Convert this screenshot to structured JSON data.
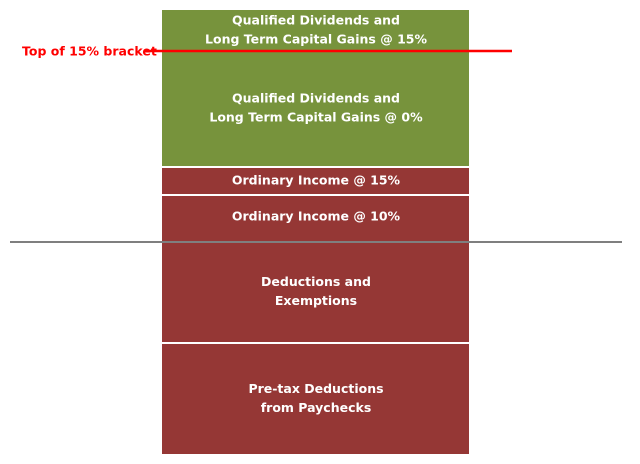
{
  "blocks": [
    {
      "lines": [
        "Qualified Dividends and",
        "Long Term Capital Gains @ 15%"
      ]
    },
    {
      "lines": [
        "Qualified Dividends and",
        "Long Term Capital Gains @ 0%"
      ]
    },
    {
      "lines": [
        "Ordinary Income @ 15%"
      ]
    },
    {
      "lines": [
        "Ordinary Income @ 10%"
      ]
    },
    {
      "lines": [
        "Deductions and",
        "Exemptions"
      ]
    },
    {
      "lines": [
        "Pre-tax Deductions",
        "from Paychecks"
      ]
    }
  ],
  "annotation": {
    "label": "Top of 15% bracket"
  }
}
